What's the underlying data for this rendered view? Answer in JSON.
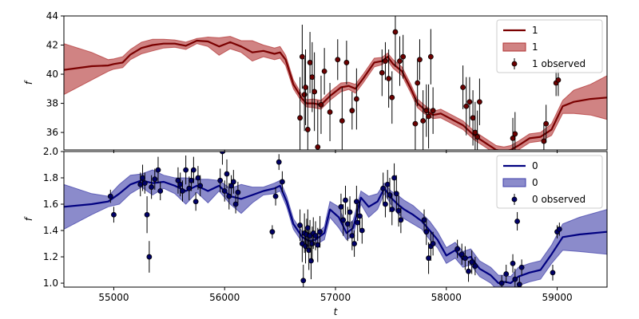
{
  "chart_data": [
    {
      "type": "line",
      "title": "",
      "xlabel": "",
      "ylabel": "f",
      "xlim": [
        54550,
        59450
      ],
      "ylim": [
        34.8,
        44
      ],
      "yticks": [
        36,
        38,
        40,
        42,
        44
      ],
      "xticks": [
        55000,
        56000,
        57000,
        58000,
        59000
      ],
      "show_xtick_labels": false,
      "grid": false,
      "legend_position": "top-right",
      "colors": {
        "line": "#7a0000",
        "band": "#b03030",
        "marker": "#6b0000"
      },
      "legend": [
        "1",
        "1",
        "1 observed"
      ],
      "series": [
        {
          "name": "1",
          "kind": "model",
          "x": [
            54550,
            54800,
            54950,
            55000,
            55080,
            55150,
            55250,
            55350,
            55450,
            55550,
            55650,
            55750,
            55850,
            55950,
            56050,
            56150,
            56250,
            56350,
            56450,
            56500,
            56550,
            56620,
            56700,
            56740,
            56800,
            56870,
            56950,
            57050,
            57120,
            57180,
            57250,
            57350,
            57420,
            57470,
            57520,
            57600,
            57680,
            57740,
            57800,
            57880,
            57950,
            58050,
            58150,
            58250,
            58350,
            58450,
            58520,
            58580,
            58650,
            58750,
            58850,
            58950,
            59050,
            59150,
            59300,
            59450
          ],
          "y": [
            40.3,
            40.55,
            40.6,
            40.7,
            40.8,
            41.35,
            41.8,
            42.0,
            42.1,
            42.1,
            41.95,
            42.3,
            42.25,
            41.9,
            42.2,
            41.9,
            41.5,
            41.6,
            41.4,
            41.5,
            41.0,
            39.3,
            38.3,
            38.0,
            38.0,
            37.9,
            38.5,
            39.1,
            39.2,
            39.0,
            39.7,
            40.8,
            40.9,
            41.2,
            40.7,
            40.2,
            39.0,
            38.0,
            37.6,
            37.2,
            37.3,
            36.9,
            36.5,
            35.8,
            35.3,
            34.8,
            34.7,
            34.8,
            35.1,
            35.6,
            35.7,
            36.2,
            37.8,
            38.1,
            38.3,
            38.4
          ],
          "band_upper": [
            42.1,
            41.5,
            41.0,
            41.05,
            41.2,
            41.7,
            42.2,
            42.4,
            42.4,
            42.35,
            42.2,
            42.45,
            42.55,
            42.5,
            42.6,
            42.3,
            42.3,
            42.0,
            41.8,
            41.9,
            41.3,
            39.6,
            38.55,
            38.25,
            38.3,
            38.2,
            38.8,
            39.4,
            39.45,
            39.3,
            40.0,
            41.1,
            41.15,
            41.45,
            41.0,
            40.5,
            39.3,
            38.3,
            37.9,
            37.45,
            37.6,
            37.2,
            36.8,
            36.1,
            35.6,
            35.1,
            35.0,
            35.1,
            35.4,
            35.9,
            36.0,
            36.6,
            38.2,
            38.9,
            39.3,
            39.9
          ],
          "band_lower": [
            38.6,
            39.6,
            40.2,
            40.35,
            40.45,
            41.0,
            41.4,
            41.6,
            41.8,
            41.85,
            41.7,
            42.1,
            41.9,
            41.3,
            41.75,
            41.5,
            40.9,
            41.2,
            41.0,
            41.1,
            40.6,
            39.0,
            38.05,
            37.75,
            37.7,
            37.6,
            38.2,
            38.8,
            38.95,
            38.7,
            39.4,
            40.5,
            40.65,
            40.95,
            40.4,
            39.9,
            38.7,
            37.7,
            37.3,
            36.95,
            37.0,
            36.6,
            36.2,
            35.5,
            35.0,
            34.5,
            34.4,
            34.5,
            34.8,
            35.3,
            35.4,
            35.8,
            37.3,
            37.3,
            37.2,
            36.9
          ]
        },
        {
          "name": "1 observed",
          "kind": "observed",
          "x": [
            56680,
            56700,
            56720,
            56730,
            56750,
            56770,
            56790,
            56810,
            56840,
            56870,
            56900,
            56950,
            57020,
            57060,
            57100,
            57150,
            57190,
            57420,
            57450,
            57480,
            57510,
            57540,
            57580,
            57610,
            57720,
            57740,
            57760,
            57790,
            57820,
            57840,
            57860,
            57880,
            58150,
            58180,
            58210,
            58240,
            58260,
            58280,
            58300,
            58600,
            58620,
            58880,
            58900,
            58990,
            59010
          ],
          "y": [
            37.0,
            41.2,
            38.6,
            39.1,
            36.2,
            40.8,
            39.8,
            38.8,
            35.0,
            37.9,
            40.2,
            37.4,
            41.0,
            36.8,
            40.8,
            37.5,
            38.3,
            40.1,
            40.9,
            39.7,
            38.4,
            42.9,
            40.9,
            41.2,
            36.6,
            39.4,
            41.0,
            36.8,
            37.5,
            37.1,
            41.2,
            37.5,
            39.1,
            37.8,
            38.1,
            37.0,
            36.0,
            35.7,
            38.1,
            35.6,
            35.9,
            35.4,
            36.6,
            39.4,
            39.6
          ],
          "yerr": [
            2.8,
            2.2,
            2.5,
            2.6,
            3.0,
            2.1,
            2.4,
            2.7,
            3.2,
            2.0,
            1.6,
            2.0,
            1.4,
            2.3,
            1.5,
            1.3,
            2.1,
            1.6,
            1.3,
            2.0,
            1.8,
            2.4,
            1.7,
            1.5,
            1.8,
            1.6,
            1.4,
            2.1,
            1.8,
            2.2,
            1.9,
            1.6,
            1.5,
            2.0,
            1.7,
            1.9,
            2.1,
            1.8,
            1.6,
            1.4,
            1.5,
            1.2,
            1.3,
            0.9,
            1.1
          ]
        }
      ]
    },
    {
      "type": "line",
      "title": "",
      "xlabel": "t",
      "ylabel": "f",
      "xlim": [
        54550,
        59450
      ],
      "ylim": [
        0.97,
        2.0
      ],
      "yticks": [
        1.0,
        1.2,
        1.4,
        1.6,
        1.8,
        2.0
      ],
      "xticks": [
        55000,
        56000,
        57000,
        58000,
        59000
      ],
      "show_xtick_labels": true,
      "grid": false,
      "legend_position": "top-right",
      "colors": {
        "line": "#000080",
        "band": "#3d3da8",
        "marker": "#000066"
      },
      "legend": [
        "0",
        "0",
        "0 observed"
      ],
      "series": [
        {
          "name": "0",
          "kind": "model",
          "x": [
            54550,
            54800,
            54950,
            55050,
            55150,
            55250,
            55350,
            55450,
            55550,
            55650,
            55750,
            55850,
            55950,
            56050,
            56150,
            56250,
            56350,
            56450,
            56500,
            56560,
            56620,
            56700,
            56760,
            56820,
            56900,
            56950,
            57030,
            57100,
            57160,
            57230,
            57300,
            57380,
            57440,
            57500,
            57560,
            57620,
            57700,
            57780,
            57850,
            57920,
            58000,
            58080,
            58150,
            58220,
            58300,
            58400,
            58470,
            58530,
            58580,
            58650,
            58750,
            58850,
            58950,
            59050,
            59200,
            59450
          ],
          "y": [
            1.58,
            1.6,
            1.62,
            1.68,
            1.75,
            1.78,
            1.76,
            1.77,
            1.74,
            1.7,
            1.74,
            1.7,
            1.74,
            1.66,
            1.64,
            1.67,
            1.7,
            1.72,
            1.74,
            1.62,
            1.45,
            1.35,
            1.32,
            1.33,
            1.38,
            1.56,
            1.5,
            1.38,
            1.42,
            1.65,
            1.58,
            1.62,
            1.72,
            1.65,
            1.6,
            1.56,
            1.52,
            1.47,
            1.4,
            1.33,
            1.21,
            1.25,
            1.18,
            1.2,
            1.11,
            1.06,
            1.0,
            1.01,
            1.0,
            1.05,
            1.08,
            1.1,
            1.22,
            1.35,
            1.37,
            1.39
          ],
          "band_upper": [
            1.75,
            1.68,
            1.66,
            1.75,
            1.82,
            1.83,
            1.86,
            1.82,
            1.8,
            1.8,
            1.79,
            1.79,
            1.78,
            1.72,
            1.75,
            1.73,
            1.73,
            1.76,
            1.78,
            1.66,
            1.49,
            1.39,
            1.36,
            1.37,
            1.43,
            1.62,
            1.58,
            1.43,
            1.48,
            1.7,
            1.66,
            1.68,
            1.76,
            1.7,
            1.67,
            1.63,
            1.59,
            1.53,
            1.47,
            1.39,
            1.27,
            1.31,
            1.24,
            1.26,
            1.17,
            1.12,
            1.06,
            1.06,
            1.05,
            1.12,
            1.15,
            1.17,
            1.29,
            1.45,
            1.5,
            1.56
          ],
          "band_lower": [
            1.41,
            1.52,
            1.58,
            1.6,
            1.68,
            1.73,
            1.67,
            1.72,
            1.68,
            1.6,
            1.69,
            1.61,
            1.7,
            1.6,
            1.53,
            1.61,
            1.67,
            1.68,
            1.7,
            1.58,
            1.41,
            1.31,
            1.28,
            1.29,
            1.33,
            1.5,
            1.42,
            1.33,
            1.36,
            1.6,
            1.5,
            1.56,
            1.68,
            1.6,
            1.53,
            1.49,
            1.45,
            1.41,
            1.33,
            1.27,
            1.15,
            1.19,
            1.12,
            1.14,
            1.05,
            1.0,
            0.94,
            0.96,
            0.95,
            0.98,
            1.01,
            1.03,
            1.15,
            1.25,
            1.24,
            1.22
          ]
        },
        {
          "name": "0 observed",
          "kind": "observed",
          "x": [
            54970,
            55000,
            55240,
            55260,
            55280,
            55300,
            55320,
            55340,
            55370,
            55400,
            55420,
            55580,
            55600,
            55620,
            55650,
            55680,
            55700,
            55720,
            55740,
            55760,
            55780,
            55960,
            55980,
            56000,
            56020,
            56040,
            56060,
            56080,
            56100,
            56120,
            56430,
            56460,
            56490,
            56520,
            56680,
            56700,
            56710,
            56720,
            56730,
            56740,
            56750,
            56760,
            56770,
            56780,
            56790,
            56800,
            56820,
            56840,
            56860,
            57050,
            57070,
            57090,
            57110,
            57130,
            57150,
            57170,
            57190,
            57200,
            57220,
            57240,
            57430,
            57450,
            57470,
            57490,
            57510,
            57530,
            57550,
            57570,
            57590,
            57800,
            57820,
            57840,
            57860,
            57880,
            58100,
            58140,
            58170,
            58200,
            58230,
            58260,
            58500,
            58540,
            58600,
            58620,
            58640,
            58660,
            58680,
            58960,
            59000,
            59020
          ],
          "y": [
            1.66,
            1.52,
            1.75,
            1.8,
            1.76,
            1.52,
            1.2,
            1.73,
            1.79,
            1.86,
            1.7,
            1.78,
            1.75,
            1.7,
            1.86,
            1.72,
            1.78,
            1.86,
            1.62,
            1.8,
            1.74,
            1.78,
            2.0,
            1.7,
            1.83,
            1.66,
            1.74,
            1.77,
            1.6,
            1.69,
            1.39,
            1.66,
            1.92,
            1.77,
            1.44,
            1.3,
            1.02,
            1.38,
            1.28,
            1.37,
            1.42,
            1.25,
            1.36,
            1.17,
            1.3,
            1.38,
            1.36,
            1.29,
            1.39,
            1.58,
            1.48,
            1.63,
            1.45,
            1.54,
            1.36,
            1.3,
            1.62,
            1.46,
            1.51,
            1.4,
            1.72,
            1.6,
            1.75,
            1.67,
            1.56,
            1.8,
            1.68,
            1.55,
            1.48,
            1.48,
            1.39,
            1.19,
            1.28,
            1.3,
            1.26,
            1.22,
            1.19,
            1.09,
            1.16,
            1.13,
            1.0,
            1.07,
            1.15,
            1.03,
            1.47,
            0.99,
            1.12,
            1.08,
            1.39,
            1.41
          ],
          "yerr": [
            0.05,
            0.06,
            0.09,
            0.1,
            0.08,
            0.14,
            0.12,
            0.09,
            0.08,
            0.1,
            0.07,
            0.1,
            0.09,
            0.08,
            0.11,
            0.09,
            0.08,
            0.1,
            0.07,
            0.09,
            0.08,
            0.09,
            0.1,
            0.08,
            0.11,
            0.1,
            0.08,
            0.09,
            0.07,
            0.08,
            0.05,
            0.07,
            0.06,
            0.08,
            0.12,
            0.14,
            0.12,
            0.15,
            0.13,
            0.12,
            0.14,
            0.15,
            0.12,
            0.14,
            0.13,
            0.12,
            0.11,
            0.13,
            0.12,
            0.1,
            0.12,
            0.11,
            0.13,
            0.12,
            0.11,
            0.1,
            0.12,
            0.14,
            0.11,
            0.1,
            0.12,
            0.1,
            0.11,
            0.13,
            0.12,
            0.11,
            0.14,
            0.12,
            0.1,
            0.08,
            0.1,
            0.12,
            0.11,
            0.09,
            0.07,
            0.08,
            0.09,
            0.08,
            0.09,
            0.07,
            0.06,
            0.07,
            0.07,
            0.08,
            0.07,
            0.06,
            0.06,
            0.06,
            0.05,
            0.05
          ]
        }
      ]
    }
  ]
}
